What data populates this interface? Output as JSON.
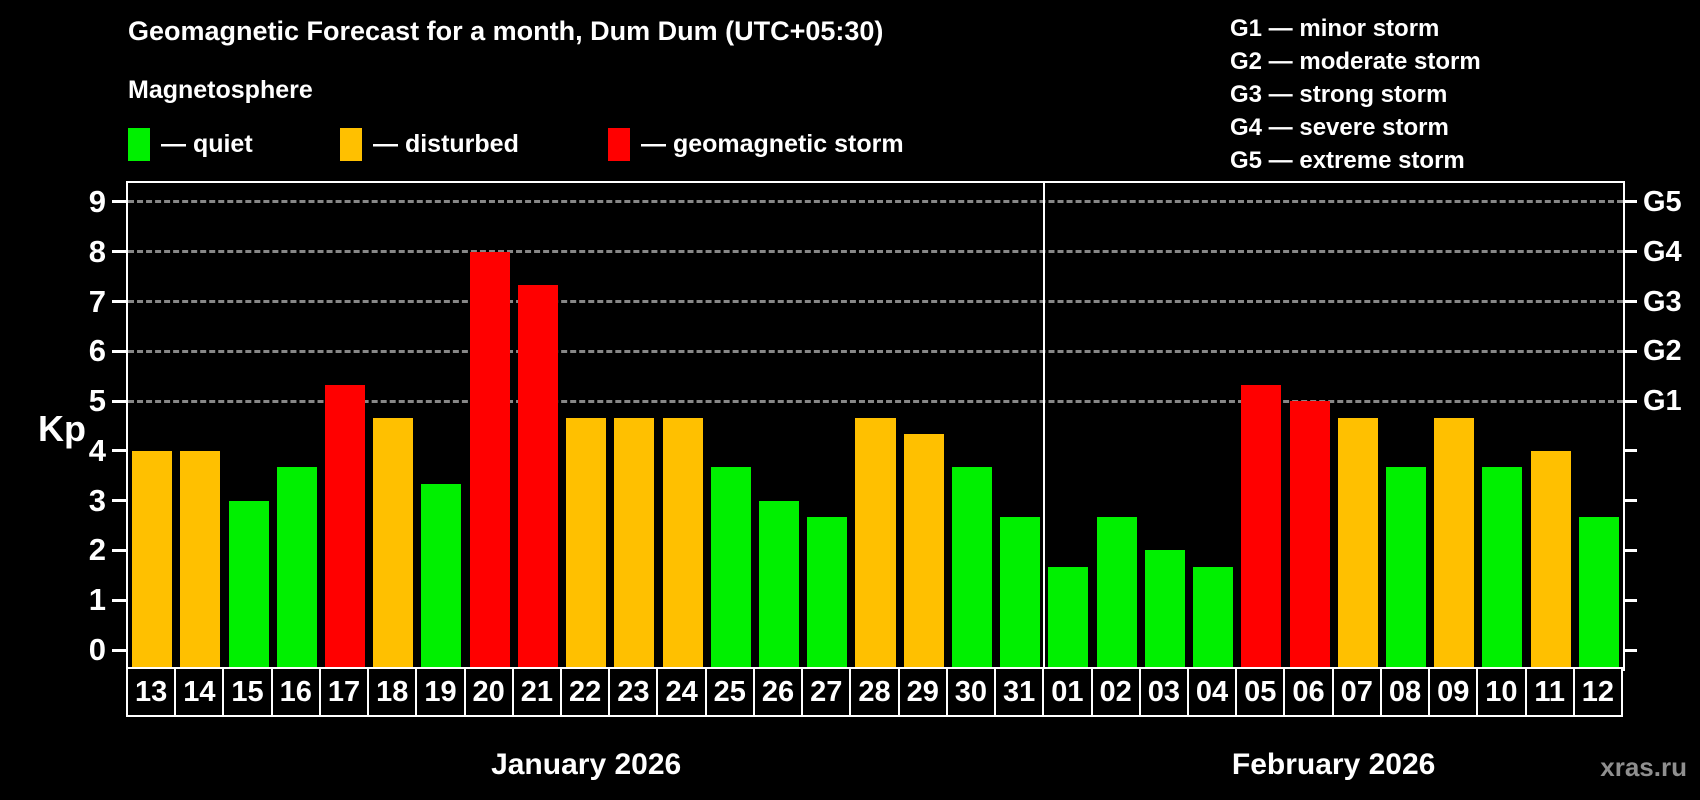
{
  "header": {
    "title": "Geomagnetic Forecast for a month, Dum Dum (UTC+05:30)",
    "subtitle": "Magnetosphere"
  },
  "legend": {
    "items": [
      {
        "label": "— quiet",
        "status": "quiet"
      },
      {
        "label": "— disturbed",
        "status": "disturbed"
      },
      {
        "label": "— geomagnetic storm",
        "status": "storm"
      }
    ]
  },
  "g_legend": {
    "items": [
      "G1 — minor storm",
      "G2 — moderate storm",
      "G3 — strong storm",
      "G4 — severe storm",
      "G5 — extreme storm"
    ]
  },
  "colors": {
    "quiet": "#00f000",
    "disturbed": "#ffc000",
    "storm": "#ff0000",
    "frame": "#ffffff",
    "grid": "#9f9f9f",
    "watermark": "#8f8f8f"
  },
  "axis": {
    "y_label": "Kp",
    "left_ticks": [
      "0",
      "1",
      "2",
      "3",
      "4",
      "5",
      "6",
      "7",
      "8",
      "9"
    ],
    "right_labels": [
      {
        "label": "G1",
        "kp": 5
      },
      {
        "label": "G2",
        "kp": 6
      },
      {
        "label": "G3",
        "kp": 7
      },
      {
        "label": "G4",
        "kp": 8
      },
      {
        "label": "G5",
        "kp": 9
      }
    ],
    "grid_kp": [
      5,
      6,
      7,
      8,
      9
    ]
  },
  "watermark": "xras.ru",
  "chart_data": {
    "type": "bar",
    "title": "Geomagnetic Forecast for a month, Dum Dum (UTC+05:30)",
    "ylabel": "Kp",
    "ylim": [
      0,
      9.4
    ],
    "grid": "horizontal dashed lines at Kp 5,6,7,8,9 (G1..G5)",
    "legend_position": "top-left",
    "months": [
      {
        "label": "January 2026"
      },
      {
        "label": "February 2026"
      }
    ],
    "series": [
      {
        "name": "Kp forecast",
        "points": [
          {
            "day": "13",
            "month": 0,
            "kp": 4.0,
            "status": "disturbed"
          },
          {
            "day": "14",
            "month": 0,
            "kp": 4.0,
            "status": "disturbed"
          },
          {
            "day": "15",
            "month": 0,
            "kp": 3.0,
            "status": "quiet"
          },
          {
            "day": "16",
            "month": 0,
            "kp": 3.67,
            "status": "quiet"
          },
          {
            "day": "17",
            "month": 0,
            "kp": 5.33,
            "status": "storm"
          },
          {
            "day": "18",
            "month": 0,
            "kp": 4.67,
            "status": "disturbed"
          },
          {
            "day": "19",
            "month": 0,
            "kp": 3.33,
            "status": "quiet"
          },
          {
            "day": "20",
            "month": 0,
            "kp": 8.0,
            "status": "storm"
          },
          {
            "day": "21",
            "month": 0,
            "kp": 7.33,
            "status": "storm"
          },
          {
            "day": "22",
            "month": 0,
            "kp": 4.67,
            "status": "disturbed"
          },
          {
            "day": "23",
            "month": 0,
            "kp": 4.67,
            "status": "disturbed"
          },
          {
            "day": "24",
            "month": 0,
            "kp": 4.67,
            "status": "disturbed"
          },
          {
            "day": "25",
            "month": 0,
            "kp": 3.67,
            "status": "quiet"
          },
          {
            "day": "26",
            "month": 0,
            "kp": 3.0,
            "status": "quiet"
          },
          {
            "day": "27",
            "month": 0,
            "kp": 2.67,
            "status": "quiet"
          },
          {
            "day": "28",
            "month": 0,
            "kp": 4.67,
            "status": "disturbed"
          },
          {
            "day": "29",
            "month": 0,
            "kp": 4.33,
            "status": "disturbed"
          },
          {
            "day": "30",
            "month": 0,
            "kp": 3.67,
            "status": "quiet"
          },
          {
            "day": "31",
            "month": 0,
            "kp": 2.67,
            "status": "quiet"
          },
          {
            "day": "01",
            "month": 1,
            "kp": 1.67,
            "status": "quiet"
          },
          {
            "day": "02",
            "month": 1,
            "kp": 2.67,
            "status": "quiet"
          },
          {
            "day": "03",
            "month": 1,
            "kp": 2.0,
            "status": "quiet"
          },
          {
            "day": "04",
            "month": 1,
            "kp": 1.67,
            "status": "quiet"
          },
          {
            "day": "05",
            "month": 1,
            "kp": 5.33,
            "status": "storm"
          },
          {
            "day": "06",
            "month": 1,
            "kp": 5.0,
            "status": "storm"
          },
          {
            "day": "07",
            "month": 1,
            "kp": 4.67,
            "status": "disturbed"
          },
          {
            "day": "08",
            "month": 1,
            "kp": 3.67,
            "status": "quiet"
          },
          {
            "day": "09",
            "month": 1,
            "kp": 4.67,
            "status": "disturbed"
          },
          {
            "day": "10",
            "month": 1,
            "kp": 3.67,
            "status": "quiet"
          },
          {
            "day": "11",
            "month": 1,
            "kp": 4.0,
            "status": "disturbed"
          },
          {
            "day": "12",
            "month": 1,
            "kp": 2.67,
            "status": "quiet"
          }
        ]
      }
    ]
  }
}
